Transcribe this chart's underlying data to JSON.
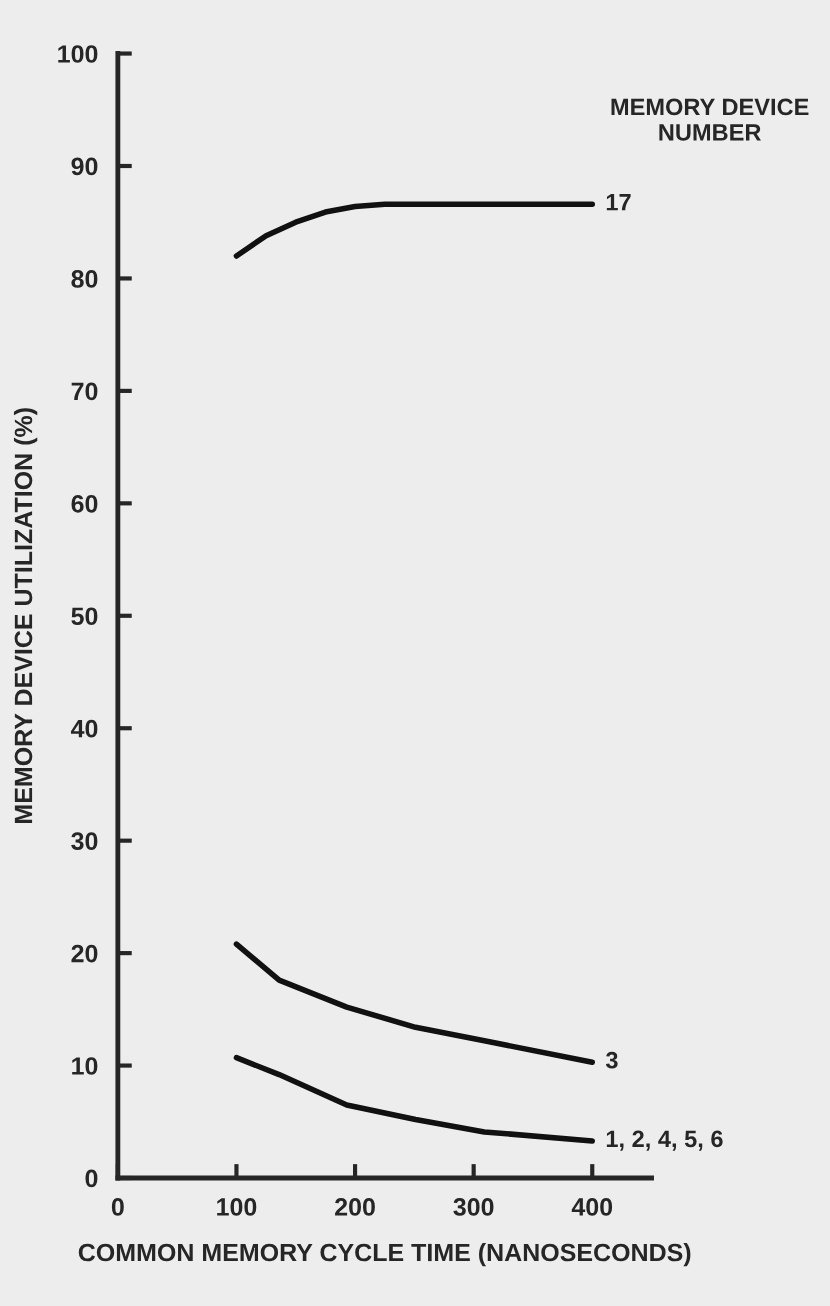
{
  "chart_data": {
    "type": "line",
    "xlabel": "COMMON MEMORY CYCLE TIME (NANOSECONDS)",
    "ylabel": "MEMORY DEVICE UTILIZATION (%)",
    "legend_title": "MEMORY DEVICE NUMBER",
    "xlim": [
      0,
      450
    ],
    "xticks": [
      0,
      100,
      200,
      300,
      400
    ],
    "ylim": [
      0,
      100
    ],
    "yticks": [
      0,
      10,
      20,
      30,
      40,
      50,
      60,
      70,
      80,
      90,
      100
    ],
    "grid": false,
    "marker": "none",
    "line_style": "solid",
    "series": [
      {
        "name": "17",
        "color": "#111111",
        "x": [
          100,
          125,
          150,
          175,
          200,
          225,
          300,
          400
        ],
        "values": [
          82,
          83.8,
          85,
          85.9,
          86.4,
          86.6,
          86.6,
          86.6
        ]
      },
      {
        "name": "3",
        "color": "#111111",
        "x": [
          100,
          136,
          193,
          251,
          309,
          400
        ],
        "values": [
          20.8,
          17.6,
          15.2,
          13.4,
          12.2,
          10.3
        ]
      },
      {
        "name": "1, 2, 4, 5, 6",
        "color": "#111111",
        "x": [
          100,
          136,
          193,
          251,
          309,
          400
        ],
        "values": [
          10.7,
          9.2,
          6.5,
          5.2,
          4.1,
          3.3
        ]
      }
    ]
  }
}
